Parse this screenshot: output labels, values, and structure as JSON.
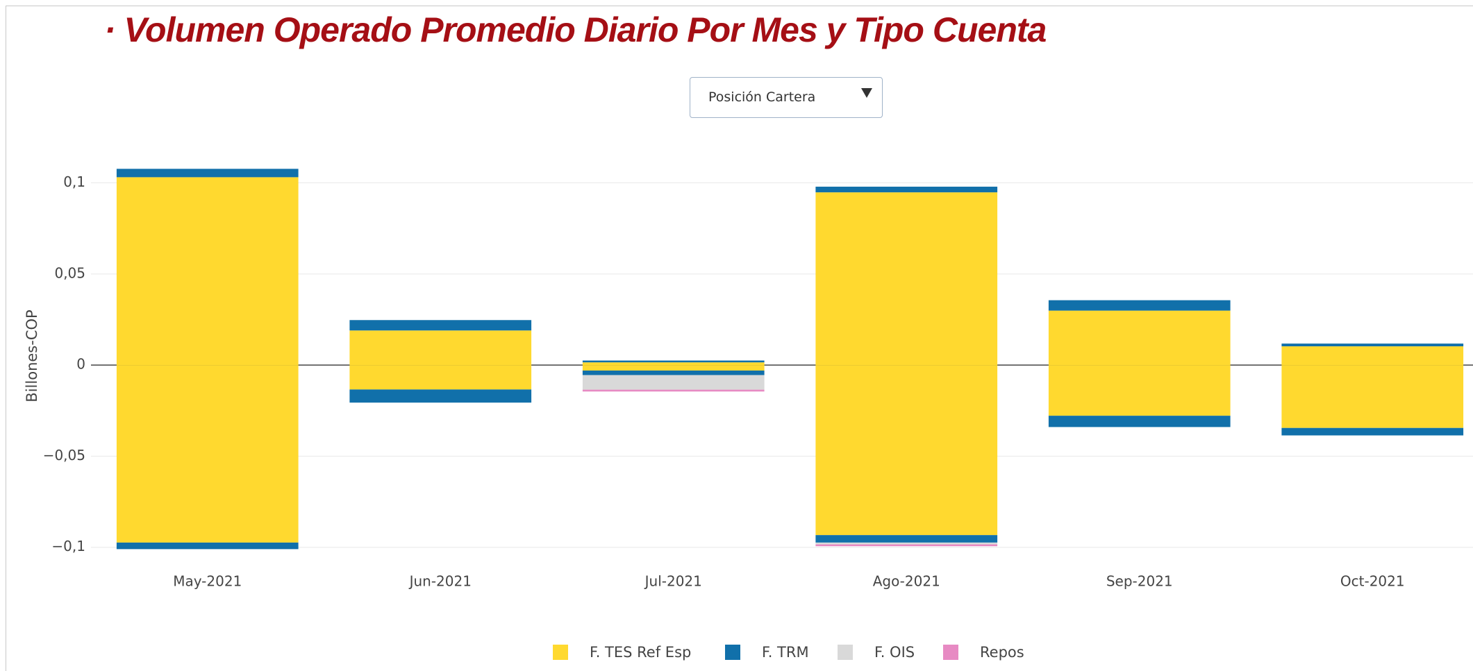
{
  "dropdown": {
    "selected": "Posición Cartera"
  },
  "chart_data": {
    "type": "bar",
    "stacked": true,
    "title": "· Volumen Operado Promedio Diario Por Mes y Tipo Cuenta",
    "y_label": "Billones-COP",
    "categories": [
      "May-2021",
      "Jun-2021",
      "Jul-2021",
      "Ago-2021",
      "Sep-2021",
      "Oct-2021"
    ],
    "series": [
      {
        "name": "F. TES Ref Esp",
        "color": "#ffd92f",
        "values": [
          0.1031,
          0.019,
          0.0015,
          0.0948,
          0.0299,
          0.0103
        ],
        "negative": [
          -0.0974,
          -0.0134,
          -0.003,
          -0.0933,
          -0.0278,
          -0.0345
        ]
      },
      {
        "name": "F. TRM",
        "color": "#1170aa",
        "values": [
          0.0046,
          0.0057,
          0.001,
          0.0031,
          0.0057,
          0.0015
        ],
        "negative": [
          -0.0036,
          -0.0072,
          -0.0025,
          -0.0041,
          -0.0062,
          -0.0041
        ]
      },
      {
        "name": "F. OIS",
        "color": "#d9d9d9",
        "values": [
          0,
          0,
          0,
          0,
          0,
          0
        ],
        "negative": [
          0,
          0,
          -0.008,
          -0.001,
          0,
          0
        ]
      },
      {
        "name": "Repos",
        "color": "#e78ac3",
        "values": [
          0,
          0,
          0,
          0,
          0,
          0
        ],
        "negative": [
          0,
          0,
          -0.001,
          -0.001,
          0,
          0
        ]
      }
    ],
    "ylim": [
      -0.11,
      0.12
    ],
    "yticks": [
      {
        "value": -0.1,
        "label": "−0,1"
      },
      {
        "value": -0.05,
        "label": "−0,05"
      },
      0,
      {
        "value": 0.05,
        "label": "0,05"
      },
      {
        "value": 0.1,
        "label": "0,1"
      }
    ],
    "grid": true,
    "legend": "bottom"
  }
}
